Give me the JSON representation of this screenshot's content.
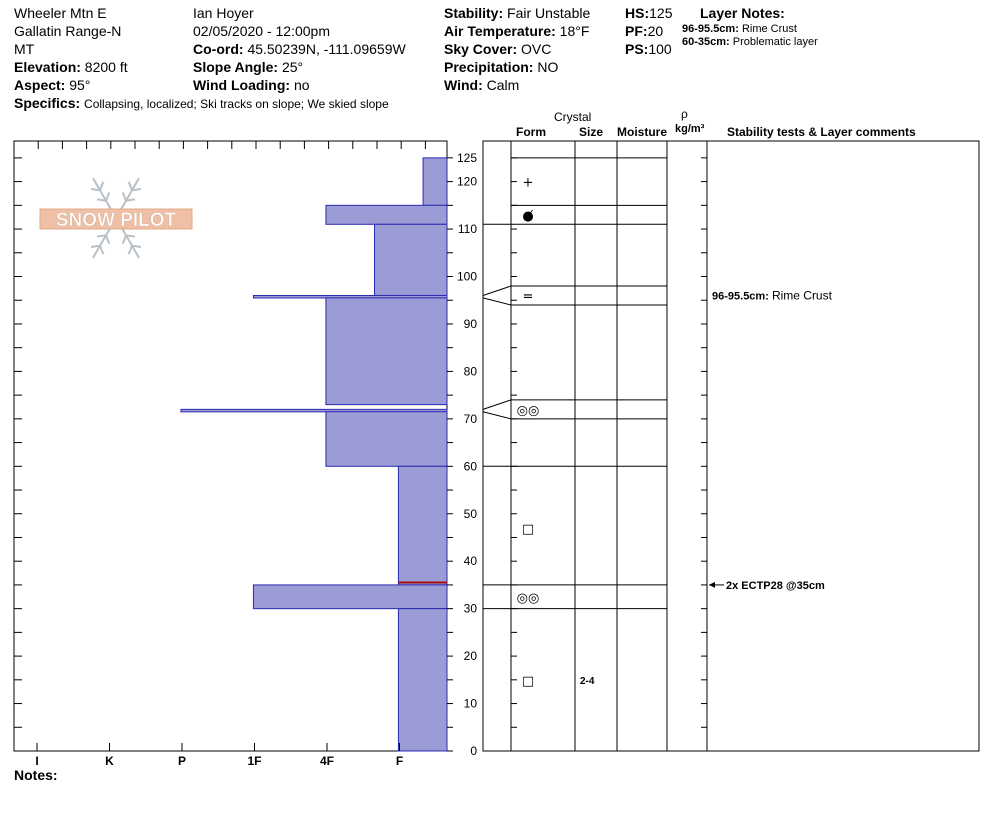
{
  "header": {
    "location": "Wheeler Mtn E",
    "range": "Gallatin Range-N",
    "state": "MT",
    "elevation_label": "Elevation:",
    "elevation": "8200 ft",
    "aspect_label": "Aspect:",
    "aspect": "95°",
    "observer": "Ian Hoyer",
    "datetime": "02/05/2020 - 12:00pm",
    "coord_label": "Co-ord:",
    "coord": "45.50239N, -111.09659W",
    "slope_label": "Slope Angle:",
    "slope": "25°",
    "wind_loading_label": "Wind Loading:",
    "wind_loading": "no",
    "stability_label": "Stability:",
    "stability": "Fair Unstable",
    "air_temp_label": "Air Temperature:",
    "air_temp": "18°F",
    "sky_label": "Sky Cover:",
    "sky": "OVC",
    "precip_label": "Precipitation:",
    "precip": "NO",
    "wind_label": "Wind:",
    "wind": "Calm",
    "hs_label": "HS:",
    "hs": "125",
    "pf_label": "PF:",
    "pf": "20",
    "ps_label": "PS:",
    "ps": "100",
    "layer_notes_label": "Layer Notes:",
    "layer_notes": [
      {
        "range": "96-95.5cm:",
        "text": "Rime Crust"
      },
      {
        "range": "60-35cm:",
        "text": "Problematic layer"
      }
    ],
    "specifics_label": "Specifics:",
    "specifics": "Collapsing, localized;  Ski tracks on slope;  We skied slope"
  },
  "columns": {
    "crystal": "Crystal",
    "form": "Form",
    "size": "Size",
    "moisture": "Moisture",
    "rho": "ρ",
    "density_unit": "kg/m³",
    "stability": "Stability tests & Layer comments"
  },
  "notes_label": "Notes:",
  "logo_text": "SNOW PILOT",
  "chart_data": {
    "type": "bar",
    "orientation": "horizontal",
    "y_unit": "cm",
    "ylim": [
      0,
      125
    ],
    "yticks": [
      0,
      10,
      20,
      30,
      40,
      50,
      60,
      70,
      80,
      90,
      100,
      110,
      120,
      125
    ],
    "hardness_labels": [
      "I",
      "K",
      "P",
      "1F",
      "4F",
      "F"
    ],
    "hardness_scale_note": "values index into hardness_labels from the right edge (F=0 ... I=5)",
    "layers": [
      {
        "top": 125,
        "bottom": 115,
        "hardness": 0.33
      },
      {
        "top": 115,
        "bottom": 111,
        "hardness": 1.67
      },
      {
        "top": 111,
        "bottom": 96,
        "hardness": 1.0
      },
      {
        "top": 96,
        "bottom": 95.5,
        "hardness": 2.67
      },
      {
        "top": 95.5,
        "bottom": 73,
        "hardness": 1.67
      },
      {
        "top": 72,
        "bottom": 71.5,
        "hardness": 3.67
      },
      {
        "top": 71.5,
        "bottom": 60,
        "hardness": 1.67
      },
      {
        "top": 60,
        "bottom": 35,
        "hardness": 0.67
      },
      {
        "top": 35,
        "bottom": 30,
        "hardness": 2.67
      },
      {
        "top": 30,
        "bottom": 0,
        "hardness": 0.67
      }
    ],
    "grain_layers": [
      {
        "top": 125,
        "bottom": 115,
        "form": "+",
        "size": ""
      },
      {
        "top": 115,
        "bottom": 111,
        "form": "●̸",
        "size": ""
      },
      {
        "top": 98,
        "bottom": 94,
        "form": "=",
        "size": ""
      },
      {
        "top": 74,
        "bottom": 70,
        "form": "◎◎",
        "size": ""
      },
      {
        "top": 60,
        "bottom": 35,
        "form": "□",
        "size": ""
      },
      {
        "top": 35,
        "bottom": 30,
        "form": "◎◎",
        "size": ""
      },
      {
        "top": 30,
        "bottom": 0,
        "form": "□",
        "size": "2-4"
      }
    ],
    "layer_boundaries": [
      125,
      115,
      111,
      98,
      94,
      74,
      70,
      60,
      35,
      30
    ],
    "comments": [
      {
        "depth": 96,
        "label": "96-95.5cm:",
        "text": "Rime Crust"
      },
      {
        "depth": 35,
        "label": "2x ECTP28 @35cm",
        "text": ""
      }
    ],
    "problem_line_depth": 35.5
  }
}
